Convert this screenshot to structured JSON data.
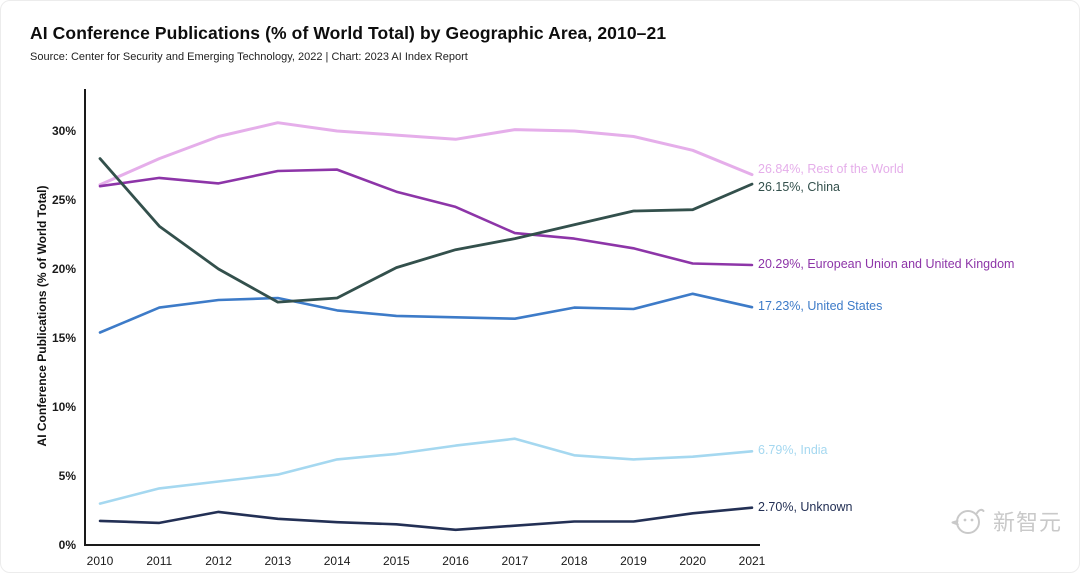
{
  "header": {
    "title": "AI Conference Publications (% of World Total) by Geographic Area, 2010–21",
    "source": "Source: Center for Security and Emerging Technology, 2022 | Chart: 2023 AI Index Report"
  },
  "watermark": {
    "text": "新智元"
  },
  "chart_data": {
    "type": "line",
    "title": "AI Conference Publications (% of World Total) by Geographic Area, 2010–21",
    "xlabel": "",
    "ylabel": "AI Conference Publications (% of World Total)",
    "x": [
      2010,
      2011,
      2012,
      2013,
      2014,
      2015,
      2016,
      2017,
      2018,
      2019,
      2020,
      2021
    ],
    "ylim": [
      0,
      33
    ],
    "yticks": [
      0,
      5,
      10,
      15,
      20,
      25,
      30
    ],
    "ytick_labels": [
      "0%",
      "5%",
      "10%",
      "15%",
      "20%",
      "25%",
      "30%"
    ],
    "grid": false,
    "legend_position": "right-end-labels",
    "axis_color": "#1a1a1a",
    "series": [
      {
        "name": "Rest of the World",
        "color": "#e5aeea",
        "line_width": 3,
        "label_dy": -13,
        "end_label": "26.84%, Rest of the World",
        "values": [
          26.1,
          28.0,
          29.6,
          30.6,
          30.0,
          29.7,
          29.4,
          30.1,
          30.0,
          29.6,
          28.6,
          26.84
        ]
      },
      {
        "name": "European Union and United Kingdom",
        "color": "#8d35a8",
        "line_width": 2.6,
        "label_dy": -8,
        "end_label": "20.29%, European Union and United Kingdom",
        "values": [
          26.0,
          26.6,
          26.2,
          27.1,
          27.2,
          25.6,
          24.5,
          22.6,
          22.2,
          21.5,
          20.4,
          20.29
        ]
      },
      {
        "name": "United States",
        "color": "#3d7bc8",
        "line_width": 2.6,
        "label_dy": -8,
        "end_label": "17.23%, United States",
        "values": [
          15.4,
          17.2,
          17.75,
          17.9,
          17.0,
          16.6,
          16.5,
          16.4,
          17.2,
          17.1,
          18.2,
          17.23
        ]
      },
      {
        "name": "India",
        "color": "#a5d8f0",
        "line_width": 2.6,
        "label_dy": -8,
        "end_label": "6.79%, India",
        "values": [
          3.0,
          4.1,
          4.6,
          5.1,
          6.2,
          6.6,
          7.2,
          7.7,
          6.5,
          6.2,
          6.4,
          6.79
        ]
      },
      {
        "name": "Unknown",
        "color": "#233055",
        "line_width": 2.6,
        "label_dy": -8,
        "end_label": "2.70%, Unknown",
        "values": [
          1.75,
          1.6,
          2.4,
          1.9,
          1.65,
          1.5,
          1.1,
          1.4,
          1.7,
          1.7,
          2.3,
          2.7
        ]
      },
      {
        "name": "China",
        "color": "#33504c",
        "line_width": 2.8,
        "label_dy": -4,
        "end_label": "26.15%, China",
        "values": [
          28.0,
          23.1,
          20.0,
          17.6,
          17.9,
          20.1,
          21.4,
          22.2,
          23.2,
          24.2,
          24.3,
          26.15
        ]
      }
    ]
  }
}
